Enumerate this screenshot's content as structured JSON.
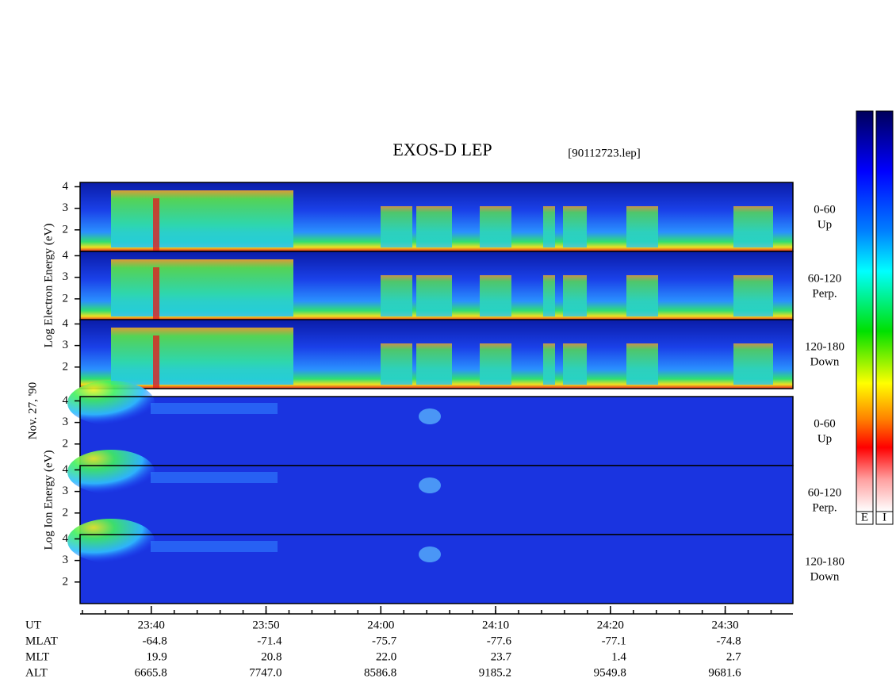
{
  "title": "EXOS-D LEP",
  "file_label": "[90112723.lep]",
  "date_label": "Nov. 27, '90",
  "spectrograms": [
    {
      "type": "spectrogram",
      "species": "electron",
      "ylabel": "Log Electron Energy (eV)",
      "ylim": [
        1,
        4.2
      ],
      "yticks": [
        2,
        3,
        4
      ],
      "panels": [
        {
          "range": "0-60",
          "direction": "Up"
        },
        {
          "range": "60-120",
          "direction": "Perp."
        },
        {
          "range": "120-180",
          "direction": "Down"
        }
      ]
    },
    {
      "type": "spectrogram",
      "species": "ion",
      "ylabel": "Log Ion Energy (eV)",
      "ylim": [
        1,
        4.2
      ],
      "yticks": [
        2,
        3,
        4
      ],
      "panels": [
        {
          "range": "0-60",
          "direction": "Up"
        },
        {
          "range": "60-120",
          "direction": "Perp."
        },
        {
          "range": "120-180",
          "direction": "Down"
        }
      ]
    }
  ],
  "time_axis": {
    "xlim": [
      1413.8,
      1475.9
    ],
    "xticks": [
      {
        "value": 1420,
        "label": "23:40"
      },
      {
        "value": 1430,
        "label": "23:50"
      },
      {
        "value": 1440,
        "label": "24:00"
      },
      {
        "value": 1450,
        "label": "24:10"
      },
      {
        "value": 1460,
        "label": "24:20"
      },
      {
        "value": 1470,
        "label": "24:30"
      }
    ],
    "minor_xticks": [
      1414,
      1416,
      1418,
      1420,
      1422,
      1424,
      1426,
      1428,
      1430,
      1432,
      1434,
      1436,
      1438,
      1440,
      1442,
      1444,
      1446,
      1448,
      1450,
      1452,
      1454,
      1456,
      1458,
      1460,
      1462,
      1464,
      1466,
      1468,
      1470,
      1472,
      1474
    ]
  },
  "ephemeris": {
    "ut_label": "UT",
    "rows": [
      {
        "label": "MLAT",
        "values": [
          "-64.8",
          "-71.4",
          "-75.7",
          "-77.6",
          "-77.1",
          "-74.8"
        ]
      },
      {
        "label": "MLT",
        "values": [
          "19.9",
          "20.8",
          "22.0",
          "23.7",
          "1.4",
          "2.7"
        ]
      },
      {
        "label": "ALT",
        "values": [
          "6665.8",
          "7747.0",
          "8586.8",
          "9185.2",
          "9549.8",
          "9681.6"
        ]
      }
    ]
  },
  "colorbars": [
    {
      "label": "E"
    },
    {
      "label": "I"
    }
  ]
}
